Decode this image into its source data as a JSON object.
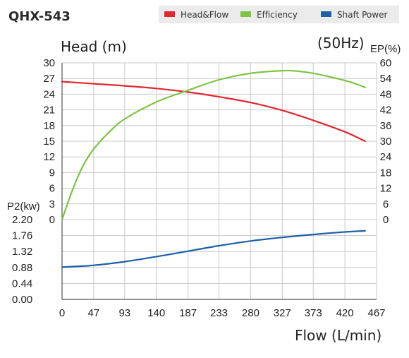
{
  "chart_data": {
    "type": "line",
    "title": "QHX-543",
    "frequency_label": "(50Hz)",
    "xlabel": "Flow (L/min)",
    "x_ticks": [
      "0",
      "47",
      "93",
      "140",
      "187",
      "233",
      "280",
      "327",
      "373",
      "420",
      "467"
    ],
    "xlim": [
      0,
      467
    ],
    "y_left": {
      "label": "Head (m)",
      "ticks": [
        "30",
        "27",
        "24",
        "21",
        "18",
        "15",
        "12",
        "9",
        "6",
        "3",
        "0"
      ],
      "ylim": [
        0,
        30
      ]
    },
    "y_right": {
      "label": "EP(%)",
      "ticks": [
        "60",
        "54",
        "48",
        "42",
        "36",
        "30",
        "24",
        "18",
        "12",
        "6",
        "0"
      ],
      "ylim": [
        0,
        60
      ]
    },
    "y_power": {
      "label": "P2(kw)",
      "ticks": [
        "2.20",
        "1.76",
        "1.32",
        "0.88",
        "0.44",
        "0.00"
      ],
      "ylim": [
        0,
        2.2
      ]
    },
    "legend": {
      "placement": "top-right",
      "background": "#ebebeb"
    },
    "grid": true,
    "series": [
      {
        "name": "Head&Flow",
        "color": "#e3262f",
        "axis": "head",
        "x": [
          0,
          47,
          93,
          140,
          187,
          233,
          280,
          327,
          373,
          420,
          450
        ],
        "y": [
          26.4,
          26.0,
          25.6,
          25.1,
          24.4,
          23.5,
          22.4,
          20.9,
          19.0,
          16.8,
          15.0
        ]
      },
      {
        "name": "Efficiency",
        "color": "#7cc443",
        "axis": "ep",
        "x": [
          0,
          15,
          30,
          47,
          70,
          93,
          140,
          187,
          233,
          280,
          327,
          350,
          373,
          400,
          430,
          450
        ],
        "y": [
          0,
          11,
          20,
          27,
          33.5,
          38.5,
          45,
          49.5,
          53.5,
          56,
          57,
          56.8,
          56,
          54.5,
          52.5,
          50.6
        ]
      },
      {
        "name": "Shaft Power",
        "color": "#1f5fa8",
        "axis": "power",
        "x": [
          0,
          47,
          93,
          140,
          187,
          233,
          280,
          327,
          373,
          420,
          450
        ],
        "y": [
          0.89,
          0.94,
          1.04,
          1.18,
          1.33,
          1.48,
          1.61,
          1.71,
          1.79,
          1.86,
          1.89
        ]
      }
    ]
  }
}
